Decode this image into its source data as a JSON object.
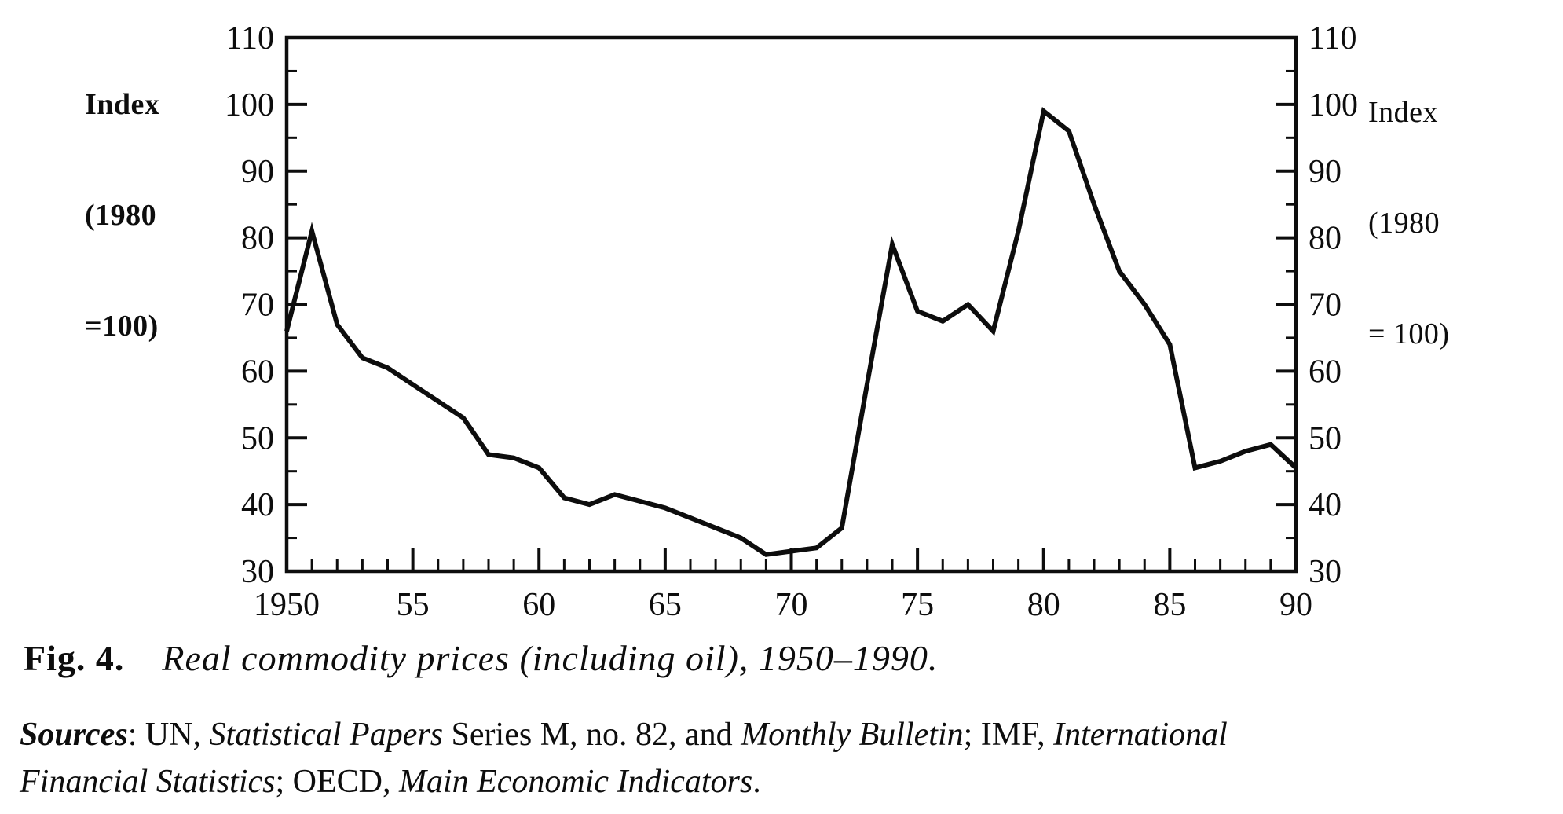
{
  "colors": {
    "ink": "#0d0d0d",
    "paper": "#ffffff"
  },
  "axis_corner_labels": {
    "left": [
      "Index",
      "(1980",
      "=100)"
    ],
    "right": [
      "Index",
      "(1980",
      "= 100)"
    ]
  },
  "figure": {
    "caption_label": "Fig. 4.",
    "caption_text": "Real commodity prices (including oil), 1950–1990.",
    "sources_lines": [
      [
        {
          "t": "Sources",
          "style": "bi"
        },
        {
          "t": ": UN, ",
          "style": "r"
        },
        {
          "t": "Statistical Papers",
          "style": "i"
        },
        {
          "t": " Series M, no. 82, and ",
          "style": "r"
        },
        {
          "t": "Monthly Bulletin",
          "style": "i"
        },
        {
          "t": "; IMF, ",
          "style": "r"
        },
        {
          "t": "International",
          "style": "i"
        }
      ],
      [
        {
          "t": "Financial Statistics",
          "style": "i"
        },
        {
          "t": "; OECD, ",
          "style": "r"
        },
        {
          "t": "Main Economic Indicators",
          "style": "i"
        },
        {
          "t": ".",
          "style": "r"
        }
      ]
    ]
  },
  "chart_data": {
    "type": "line",
    "title": "Real commodity prices (including oil), 1950–1990",
    "xlabel": "",
    "ylabel": "Index (1980 = 100)",
    "xlim": [
      1950,
      1990
    ],
    "ylim": [
      30,
      110
    ],
    "grid": false,
    "legend": "none",
    "line_color": "#0d0d0d",
    "x": [
      1950,
      1951,
      1952,
      1953,
      1954,
      1955,
      1956,
      1957,
      1958,
      1959,
      1960,
      1961,
      1962,
      1963,
      1964,
      1965,
      1966,
      1967,
      1968,
      1969,
      1970,
      1971,
      1972,
      1973,
      1974,
      1975,
      1976,
      1977,
      1978,
      1979,
      1980,
      1981,
      1982,
      1983,
      1984,
      1985,
      1986,
      1987,
      1988,
      1989,
      1990
    ],
    "values": [
      66,
      81,
      67,
      62,
      60.5,
      58,
      55.5,
      53,
      47.5,
      47,
      45.5,
      41,
      40,
      41.5,
      40.5,
      39.5,
      38,
      36.5,
      35,
      32.5,
      33,
      33.5,
      36.5,
      58,
      79,
      69,
      67.5,
      70,
      66,
      81,
      99,
      96,
      85,
      75,
      70,
      64,
      45.5,
      46.5,
      48,
      49,
      45.5
    ],
    "ytick_major": [
      30,
      40,
      50,
      60,
      70,
      80,
      90,
      100,
      110
    ],
    "ytick_minor": [
      35,
      45,
      55,
      65,
      75,
      85,
      95,
      105
    ],
    "ytick_labels": [
      "30",
      "40",
      "50",
      "60",
      "70",
      "80",
      "90",
      "100",
      "110"
    ],
    "ytick_sides": [
      "left",
      "right"
    ],
    "xtick_minor_every_year": true,
    "xtick_labeled_years": [
      1950,
      1955,
      1960,
      1965,
      1970,
      1975,
      1980,
      1985,
      1990
    ],
    "xtick_labels": [
      "1950",
      "55",
      "60",
      "65",
      "70",
      "75",
      "80",
      "85",
      "90"
    ]
  }
}
